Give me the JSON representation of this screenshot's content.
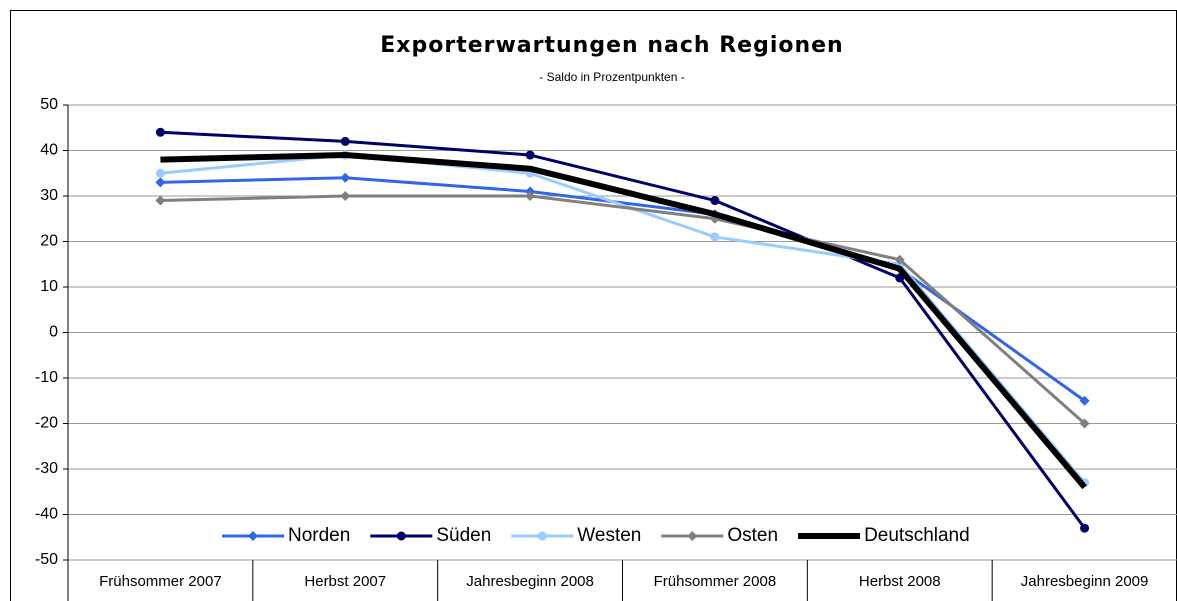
{
  "chart_data": {
    "type": "line",
    "title": "Exporterwartungen nach Regionen",
    "subtitle": "- Saldo in Prozentpunkten -",
    "categories": [
      "Frühsommer 2007",
      "Herbst 2007",
      "Jahresbeginn 2008",
      "Frühsommer 2008",
      "Herbst 2008",
      "Jahresbeginn 2009"
    ],
    "series": [
      {
        "name": "Norden",
        "color": "#3366e6",
        "marker": "diamond",
        "width": 3,
        "values": [
          33,
          34,
          31,
          26,
          14,
          -15
        ]
      },
      {
        "name": "Süden",
        "color": "#000066",
        "marker": "circle",
        "width": 3,
        "values": [
          44,
          42,
          39,
          29,
          12,
          -43
        ]
      },
      {
        "name": "Westen",
        "color": "#99ccff",
        "marker": "circle",
        "width": 3,
        "values": [
          35,
          39,
          35,
          21,
          15,
          -33
        ]
      },
      {
        "name": "Osten",
        "color": "#808080",
        "marker": "diamond",
        "width": 3,
        "values": [
          29,
          30,
          30,
          25,
          16,
          -20
        ]
      },
      {
        "name": "Deutschland",
        "color": "#000000",
        "marker": "none",
        "width": 6,
        "values": [
          38,
          39,
          36,
          26,
          14,
          -34
        ]
      }
    ],
    "ylim": [
      -50,
      50
    ],
    "yticks": [
      -50,
      -40,
      -30,
      -20,
      -10,
      0,
      10,
      20,
      30,
      40,
      50
    ],
    "grid": true,
    "legend": "bottom"
  }
}
